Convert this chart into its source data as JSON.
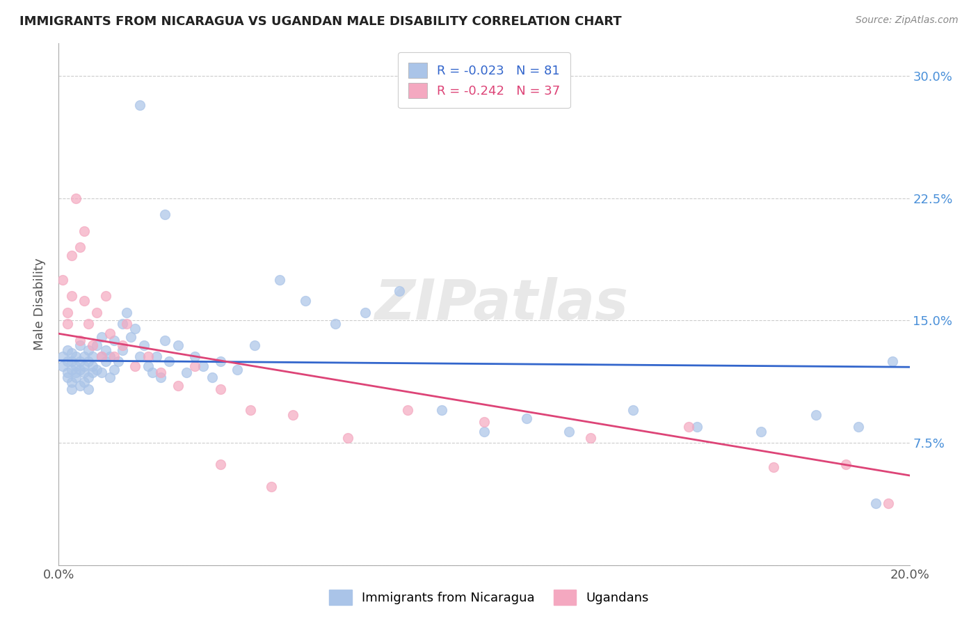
{
  "title": "IMMIGRANTS FROM NICARAGUA VS UGANDAN MALE DISABILITY CORRELATION CHART",
  "source": "Source: ZipAtlas.com",
  "ylabel_label": "Male Disability",
  "x_min": 0.0,
  "x_max": 0.2,
  "y_min": 0.0,
  "y_max": 0.32,
  "x_ticks": [
    0.0,
    0.2
  ],
  "x_tick_labels": [
    "0.0%",
    "20.0%"
  ],
  "y_ticks": [
    0.0,
    0.075,
    0.15,
    0.225,
    0.3
  ],
  "y_tick_labels": [
    "",
    "7.5%",
    "15.0%",
    "22.5%",
    "30.0%"
  ],
  "blue_color": "#aac4e8",
  "pink_color": "#f4a8c0",
  "blue_line_color": "#3366cc",
  "pink_line_color": "#dd4477",
  "legend_blue_text": "R = -0.023   N = 81",
  "legend_pink_text": "R = -0.242   N = 37",
  "legend_label_blue": "Immigrants from Nicaragua",
  "legend_label_pink": "Ugandans",
  "watermark": "ZIPatlas",
  "blue_scatter_x": [
    0.001,
    0.001,
    0.002,
    0.002,
    0.002,
    0.002,
    0.003,
    0.003,
    0.003,
    0.003,
    0.003,
    0.004,
    0.004,
    0.004,
    0.004,
    0.005,
    0.005,
    0.005,
    0.005,
    0.006,
    0.006,
    0.006,
    0.006,
    0.007,
    0.007,
    0.007,
    0.007,
    0.008,
    0.008,
    0.008,
    0.009,
    0.009,
    0.01,
    0.01,
    0.01,
    0.011,
    0.011,
    0.012,
    0.012,
    0.013,
    0.013,
    0.014,
    0.015,
    0.015,
    0.016,
    0.017,
    0.018,
    0.019,
    0.02,
    0.021,
    0.022,
    0.023,
    0.024,
    0.025,
    0.026,
    0.028,
    0.03,
    0.032,
    0.034,
    0.036,
    0.038,
    0.042,
    0.046,
    0.052,
    0.058,
    0.065,
    0.072,
    0.08,
    0.09,
    0.1,
    0.11,
    0.12,
    0.135,
    0.15,
    0.165,
    0.178,
    0.188,
    0.192,
    0.196,
    0.019,
    0.025
  ],
  "blue_scatter_y": [
    0.128,
    0.122,
    0.118,
    0.125,
    0.115,
    0.132,
    0.112,
    0.12,
    0.108,
    0.13,
    0.125,
    0.118,
    0.122,
    0.115,
    0.128,
    0.11,
    0.135,
    0.12,
    0.125,
    0.112,
    0.118,
    0.128,
    0.122,
    0.108,
    0.115,
    0.132,
    0.125,
    0.118,
    0.128,
    0.122,
    0.135,
    0.12,
    0.128,
    0.118,
    0.14,
    0.125,
    0.132,
    0.115,
    0.128,
    0.12,
    0.138,
    0.125,
    0.148,
    0.132,
    0.155,
    0.14,
    0.145,
    0.128,
    0.135,
    0.122,
    0.118,
    0.128,
    0.115,
    0.138,
    0.125,
    0.135,
    0.118,
    0.128,
    0.122,
    0.115,
    0.125,
    0.12,
    0.135,
    0.175,
    0.162,
    0.148,
    0.155,
    0.168,
    0.095,
    0.082,
    0.09,
    0.082,
    0.095,
    0.085,
    0.082,
    0.092,
    0.085,
    0.038,
    0.125,
    0.282,
    0.215
  ],
  "pink_scatter_x": [
    0.001,
    0.002,
    0.002,
    0.003,
    0.003,
    0.004,
    0.005,
    0.005,
    0.006,
    0.006,
    0.007,
    0.008,
    0.009,
    0.01,
    0.011,
    0.012,
    0.013,
    0.015,
    0.016,
    0.018,
    0.021,
    0.024,
    0.028,
    0.032,
    0.038,
    0.045,
    0.055,
    0.068,
    0.082,
    0.1,
    0.125,
    0.148,
    0.168,
    0.185,
    0.195,
    0.038,
    0.05
  ],
  "pink_scatter_y": [
    0.175,
    0.155,
    0.148,
    0.19,
    0.165,
    0.225,
    0.138,
    0.195,
    0.162,
    0.205,
    0.148,
    0.135,
    0.155,
    0.128,
    0.165,
    0.142,
    0.128,
    0.135,
    0.148,
    0.122,
    0.128,
    0.118,
    0.11,
    0.122,
    0.108,
    0.095,
    0.092,
    0.078,
    0.095,
    0.088,
    0.078,
    0.085,
    0.06,
    0.062,
    0.038,
    0.062,
    0.048
  ],
  "blue_line_x": [
    0.0,
    0.2
  ],
  "blue_line_y": [
    0.1255,
    0.1215
  ],
  "pink_line_x": [
    0.0,
    0.2
  ],
  "pink_line_y": [
    0.142,
    0.055
  ]
}
